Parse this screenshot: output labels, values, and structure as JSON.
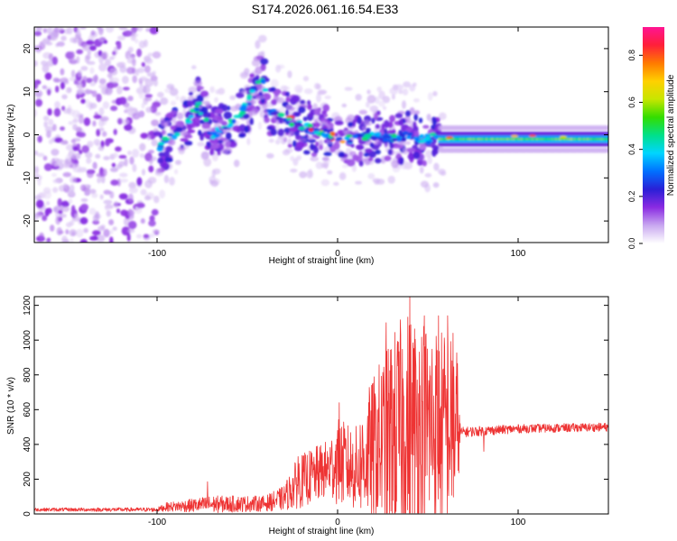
{
  "title": "S174.2026.061.16.54.E33",
  "chart_data": [
    {
      "type": "heatmap",
      "panel": "spectrogram",
      "xlabel": "Height of straight line (km)",
      "ylabel": "Frequency (Hz)",
      "xlim": [
        -168,
        150
      ],
      "ylim": [
        -25,
        25
      ],
      "xticks": [
        -100,
        0,
        100
      ],
      "xtick_labels": [
        "-100",
        "0",
        "100"
      ],
      "yticks": [
        20,
        10,
        0,
        -10,
        -20
      ],
      "ytick_labels": [
        "20",
        "10",
        "0",
        "-10",
        "-20"
      ],
      "colorbar": {
        "label": "Normalized spectral amplitude",
        "range": [
          0.0,
          0.92
        ],
        "ticks": [
          0.0,
          0.2,
          0.4,
          0.6,
          0.8
        ],
        "tick_labels": [
          "0.0",
          "0.2",
          "0.4",
          "0.6",
          "0.8"
        ],
        "colors": [
          "#ffffff",
          "#c9a8f0",
          "#8a2be2",
          "#2a1fd6",
          "#0070ff",
          "#00d5ff",
          "#00e08a",
          "#33dd00",
          "#c8e600",
          "#ffd000",
          "#ff7a00",
          "#ff1f3a",
          "#ff1493"
        ]
      },
      "noise_region": {
        "x": [
          -168,
          -100
        ],
        "freq": [
          -25,
          25
        ],
        "amplitude": 0.12
      },
      "ridge": [
        {
          "x": -100,
          "f": -3
        },
        {
          "x": -90,
          "f": 0
        },
        {
          "x": -82,
          "f": 4
        },
        {
          "x": -77,
          "f": 7
        },
        {
          "x": -70,
          "f": 0
        },
        {
          "x": -60,
          "f": 2
        },
        {
          "x": -50,
          "f": 7
        },
        {
          "x": -42,
          "f": 14
        },
        {
          "x": -38,
          "f": 6
        },
        {
          "x": -30,
          "f": 4
        },
        {
          "x": -20,
          "f": 2
        },
        {
          "x": -10,
          "f": 1
        },
        {
          "x": 0,
          "f": -1
        },
        {
          "x": 10,
          "f": -1
        },
        {
          "x": 20,
          "f": 0
        },
        {
          "x": 30,
          "f": -1
        },
        {
          "x": 40,
          "f": 0
        },
        {
          "x": 50,
          "f": -1
        },
        {
          "x": 57,
          "f": 0
        },
        {
          "x": 60,
          "f": -1
        },
        {
          "x": 80,
          "f": -1
        },
        {
          "x": 100,
          "f": -0.5
        },
        {
          "x": 120,
          "f": -0.8
        },
        {
          "x": 150,
          "f": -1
        }
      ],
      "scatter_band": {
        "x": [
          -100,
          57
        ],
        "freq_halfwidth": 6
      },
      "stable_band": {
        "x": [
          57,
          150
        ],
        "center": -1,
        "amplitude": 0.55
      }
    },
    {
      "type": "line",
      "panel": "snr",
      "xlabel": "Height of straight line (km)",
      "ylabel": "SNR (10 * v/v)",
      "xlim": [
        -168,
        150
      ],
      "ylim": [
        0,
        1250
      ],
      "xticks": [
        -100,
        0,
        100
      ],
      "xtick_labels": [
        "-100",
        "0",
        "100"
      ],
      "yticks": [
        0,
        200,
        400,
        600,
        800,
        1000,
        1200
      ],
      "ytick_labels": [
        "0",
        "200",
        "400",
        "600",
        "800",
        "1000",
        "1200"
      ],
      "color": "#ee3333",
      "series": [
        {
          "name": "SNR",
          "envelope": [
            {
              "x": -168,
              "base": 25,
              "amp": 10
            },
            {
              "x": -100,
              "base": 25,
              "amp": 12
            },
            {
              "x": -95,
              "base": 40,
              "amp": 25
            },
            {
              "x": -70,
              "base": 55,
              "amp": 50
            },
            {
              "x": -40,
              "base": 60,
              "amp": 45
            },
            {
              "x": -30,
              "base": 90,
              "amp": 70
            },
            {
              "x": -22,
              "base": 180,
              "amp": 150
            },
            {
              "x": -5,
              "base": 260,
              "amp": 170
            },
            {
              "x": 0,
              "base": 300,
              "amp": 250
            },
            {
              "x": 10,
              "base": 260,
              "amp": 240
            },
            {
              "x": 18,
              "base": 350,
              "amp": 400
            },
            {
              "x": 30,
              "base": 450,
              "amp": 600
            },
            {
              "x": 40,
              "base": 500,
              "amp": 700
            },
            {
              "x": 55,
              "base": 500,
              "amp": 600
            },
            {
              "x": 66,
              "base": 480,
              "amp": 520
            },
            {
              "x": 68,
              "base": 470,
              "amp": 30
            },
            {
              "x": 100,
              "base": 490,
              "amp": 25
            },
            {
              "x": 150,
              "base": 500,
              "amp": 25
            }
          ],
          "peaks": [
            {
              "x": -72,
              "y": 185
            },
            {
              "x": -22,
              "y": 330
            },
            {
              "x": 1,
              "y": 640
            },
            {
              "x": 27,
              "y": 1100
            },
            {
              "x": 35,
              "y": 1030
            },
            {
              "x": 40,
              "y": 1250
            },
            {
              "x": 48,
              "y": 1140
            },
            {
              "x": 56,
              "y": 1140
            },
            {
              "x": 61,
              "y": 1140
            },
            {
              "x": 64,
              "y": 1040
            },
            {
              "x": 81,
              "y": 360
            }
          ]
        }
      ]
    }
  ]
}
